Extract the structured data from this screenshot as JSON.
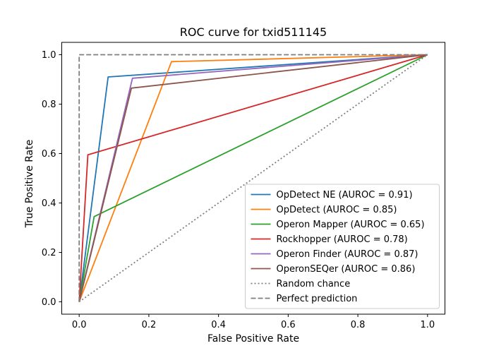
{
  "chart_data": {
    "type": "line",
    "title": "ROC curve for txid511145",
    "xlabel": "False Positive Rate",
    "ylabel": "True Positive Rate",
    "xlim": [
      -0.05,
      1.05
    ],
    "ylim": [
      -0.05,
      1.05
    ],
    "xticks": [
      "0.0",
      "0.2",
      "0.4",
      "0.6",
      "0.8",
      "1.0"
    ],
    "yticks": [
      "0.0",
      "0.2",
      "0.4",
      "0.6",
      "0.8",
      "1.0"
    ],
    "grid": false,
    "legend_position": "lower-right",
    "series": [
      {
        "name": "OpDetect NE (AUROC = 0.91)",
        "color": "#1f77b4",
        "style": "solid",
        "x": [
          0,
          0.083,
          1
        ],
        "y": [
          0,
          0.91,
          1
        ]
      },
      {
        "name": "OpDetect (AUROC = 0.85)",
        "color": "#ff7f0e",
        "style": "solid",
        "x": [
          0,
          0.265,
          1
        ],
        "y": [
          0,
          0.972,
          1
        ]
      },
      {
        "name": "Operon Mapper (AUROC = 0.65)",
        "color": "#2ca02c",
        "style": "solid",
        "x": [
          0,
          0.043,
          1
        ],
        "y": [
          0,
          0.345,
          1
        ]
      },
      {
        "name": "Rockhopper (AUROC = 0.78)",
        "color": "#d62728",
        "style": "solid",
        "x": [
          0,
          0.025,
          1
        ],
        "y": [
          0,
          0.595,
          1
        ]
      },
      {
        "name": "Operon Finder (AUROC = 0.87)",
        "color": "#9467bd",
        "style": "solid",
        "x": [
          0,
          0.153,
          1
        ],
        "y": [
          0,
          0.905,
          1
        ]
      },
      {
        "name": "OperonSEQer (AUROC = 0.86)",
        "color": "#8c564b",
        "style": "solid",
        "x": [
          0,
          0.15,
          1
        ],
        "y": [
          0,
          0.865,
          1
        ]
      },
      {
        "name": "Random chance",
        "color": "#7f7f7f",
        "style": "dotted",
        "x": [
          0,
          1
        ],
        "y": [
          0,
          1
        ]
      },
      {
        "name": "Perfect prediction",
        "color": "#7f7f7f",
        "style": "dashed",
        "x": [
          0,
          0,
          1
        ],
        "y": [
          0,
          1,
          1
        ]
      }
    ]
  }
}
